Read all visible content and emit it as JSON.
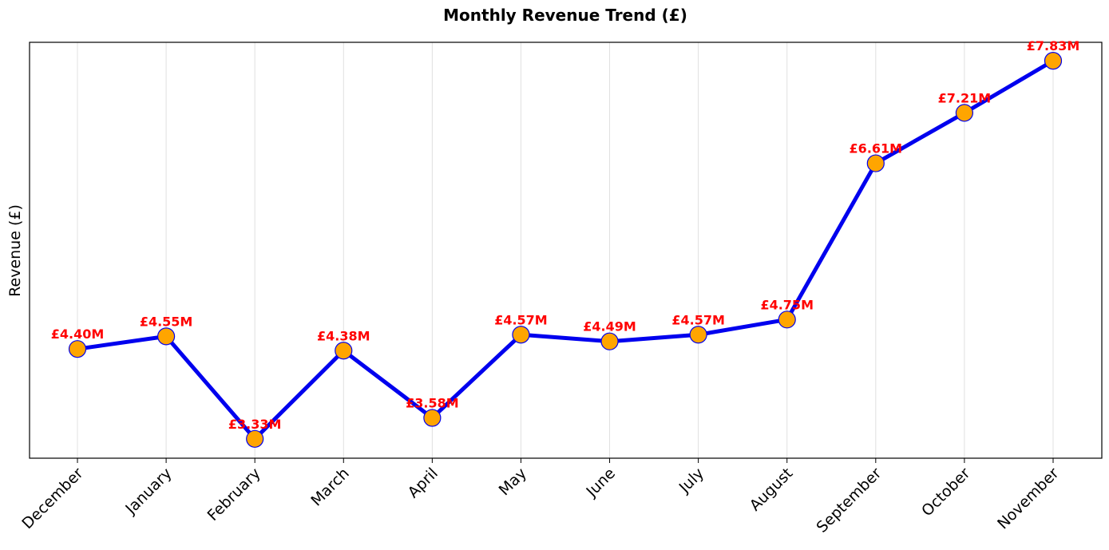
{
  "chart_data": {
    "type": "line",
    "title": "Monthly Revenue Trend (£)",
    "xlabel": "",
    "ylabel": "Revenue (£)",
    "categories": [
      "December",
      "January",
      "February",
      "March",
      "April",
      "May",
      "June",
      "July",
      "August",
      "September",
      "October",
      "November"
    ],
    "series": [
      {
        "values": [
          4.4,
          4.55,
          3.33,
          4.38,
          3.58,
          4.57,
          4.49,
          4.57,
          4.75,
          6.61,
          7.21,
          7.83
        ],
        "data_labels": [
          "£4.40M",
          "£4.55M",
          "£3.33M",
          "£4.38M",
          "£3.58M",
          "£4.57M",
          "£4.49M",
          "£4.57M",
          "£4.75M",
          "£6.61M",
          "£7.21M",
          "£7.83M"
        ]
      }
    ],
    "y_unit": "£ millions",
    "ylim": [
      3.1,
      8.05
    ],
    "y_ticks_visible": false,
    "grid": "vertical",
    "colors": {
      "line": "#0000ee",
      "marker_fill": "#ffa500",
      "marker_edge": "#0000ee",
      "data_label": "#ff0000",
      "grid": "#e0e0e0"
    }
  }
}
